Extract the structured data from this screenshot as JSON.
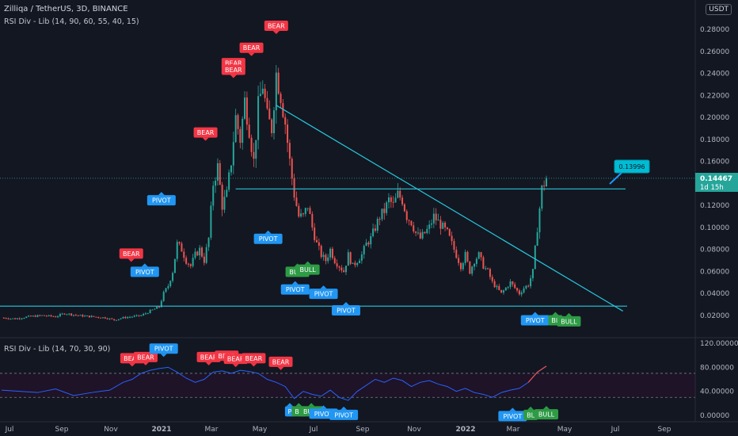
{
  "header": {
    "title": "Zilliqa / TetherUS, 3D, BINANCE",
    "indicator_main": "RSI Div - Lib (14, 90, 60, 55, 40, 15)",
    "indicator_sub": "RSI Div - Lib (14, 70, 30, 90)",
    "currency": "USDT"
  },
  "price_panel": {
    "last_price": "0.14467",
    "countdown": "1d 15h",
    "target_label": "0.13996"
  },
  "colors": {
    "background": "#131722",
    "up": "#26a69a",
    "down": "#ef5350",
    "bear_tag": "#f23645",
    "bull_tag": "#2e9b45",
    "pivot_tag": "#2196f3",
    "trendline": "#26c6da",
    "rsi_line": "#2962ff",
    "rsi_band": "#1e1327"
  },
  "chart_data": [
    {
      "type": "candlestick",
      "title": "Zilliqa / TetherUS, 3D, BINANCE",
      "y_ticks": [
        "0.28000",
        "0.26000",
        "0.24000",
        "0.22000",
        "0.20000",
        "0.18000",
        "0.16000",
        "0.14000",
        "0.12000",
        "0.10000",
        "0.08000",
        "0.06000",
        "0.04000",
        "0.02000"
      ],
      "ylim": [
        0.012,
        0.292
      ],
      "x_ticks": [
        "Jul",
        "Sep",
        "Nov",
        "2021",
        "Mar",
        "May",
        "Jul",
        "Sep",
        "Nov",
        "2022",
        "Mar",
        "May",
        "Jul",
        "Sep"
      ],
      "price_path": [
        [
          0,
          0.018
        ],
        [
          3,
          0.017
        ],
        [
          6,
          0.019
        ],
        [
          9,
          0.02
        ],
        [
          12,
          0.019
        ],
        [
          14,
          0.022
        ],
        [
          17,
          0.02
        ],
        [
          20,
          0.019
        ],
        [
          23,
          0.018
        ],
        [
          25,
          0.016
        ],
        [
          27,
          0.018
        ],
        [
          29,
          0.019
        ],
        [
          31,
          0.02
        ],
        [
          33,
          0.024
        ],
        [
          35,
          0.028
        ],
        [
          36,
          0.04
        ],
        [
          37,
          0.047
        ],
        [
          38,
          0.06
        ],
        [
          39,
          0.085
        ],
        [
          40,
          0.08
        ],
        [
          41,
          0.07
        ],
        [
          42,
          0.065
        ],
        [
          43,
          0.075
        ],
        [
          44,
          0.08
        ],
        [
          45,
          0.07
        ],
        [
          46,
          0.09
        ],
        [
          47,
          0.14
        ],
        [
          48,
          0.155
        ],
        [
          49,
          0.12
        ],
        [
          50,
          0.13
        ],
        [
          51,
          0.16
        ],
        [
          52,
          0.2
        ],
        [
          53,
          0.18
        ],
        [
          54,
          0.215
        ],
        [
          55,
          0.19
        ],
        [
          56,
          0.16
        ],
        [
          57,
          0.21
        ],
        [
          58,
          0.23
        ],
        [
          59,
          0.2
        ],
        [
          60,
          0.19
        ],
        [
          61,
          0.24
        ],
        [
          62,
          0.22
        ],
        [
          63,
          0.195
        ],
        [
          64,
          0.16
        ],
        [
          65,
          0.13
        ],
        [
          66,
          0.11
        ],
        [
          67,
          0.11
        ],
        [
          68,
          0.12
        ],
        [
          69,
          0.1
        ],
        [
          70,
          0.085
        ],
        [
          71,
          0.075
        ],
        [
          72,
          0.07
        ],
        [
          73,
          0.08
        ],
        [
          74,
          0.07
        ],
        [
          75,
          0.065
        ],
        [
          76,
          0.06
        ],
        [
          77,
          0.075
        ],
        [
          78,
          0.065
        ],
        [
          79,
          0.07
        ],
        [
          80,
          0.075
        ],
        [
          81,
          0.085
        ],
        [
          82,
          0.09
        ],
        [
          83,
          0.1
        ],
        [
          84,
          0.11
        ],
        [
          85,
          0.115
        ],
        [
          86,
          0.125
        ],
        [
          87,
          0.12
        ],
        [
          88,
          0.13
        ],
        [
          89,
          0.125
        ],
        [
          90,
          0.11
        ],
        [
          91,
          0.105
        ],
        [
          92,
          0.095
        ],
        [
          93,
          0.09
        ],
        [
          94,
          0.095
        ],
        [
          95,
          0.1
        ],
        [
          96,
          0.11
        ],
        [
          97,
          0.105
        ],
        [
          98,
          0.1
        ],
        [
          99,
          0.095
        ],
        [
          100,
          0.085
        ],
        [
          101,
          0.075
        ],
        [
          102,
          0.065
        ],
        [
          103,
          0.075
        ],
        [
          104,
          0.06
        ],
        [
          105,
          0.07
        ],
        [
          106,
          0.075
        ],
        [
          107,
          0.065
        ],
        [
          108,
          0.06
        ],
        [
          109,
          0.05
        ],
        [
          110,
          0.045
        ],
        [
          111,
          0.04
        ],
        [
          112,
          0.045
        ],
        [
          113,
          0.05
        ],
        [
          114,
          0.045
        ],
        [
          115,
          0.04
        ],
        [
          116,
          0.045
        ],
        [
          117,
          0.048
        ],
        [
          118,
          0.06
        ],
        [
          119,
          0.1
        ],
        [
          120,
          0.135
        ],
        [
          121,
          0.145
        ]
      ],
      "x_span": 121,
      "horizontal_levels": [
        0.135,
        0.0285
      ],
      "descending_trendline": [
        [
          61,
          0.211
        ],
        [
          138,
          0.024
        ]
      ],
      "signals": [
        {
          "label": "BEAR",
          "x": 61,
          "price": 0.275
        },
        {
          "label": "BEAR",
          "x": 55.5,
          "price": 0.255
        },
        {
          "label": "BEAR",
          "x": 51.5,
          "price": 0.241
        },
        {
          "label": "BEAR",
          "x": 51.5,
          "price": 0.235
        },
        {
          "label": "BEAR",
          "x": 45.3,
          "price": 0.178
        },
        {
          "label": "PIVOT",
          "x": 35.5,
          "price": 0.133
        },
        {
          "label": "BEAR",
          "x": 28.8,
          "price": 0.068
        },
        {
          "label": "PIVOT",
          "x": 31.8,
          "price": 0.068
        },
        {
          "label": "PIVOT",
          "x": 59.2,
          "price": 0.098
        },
        {
          "label": "BULL",
          "x": 65.7,
          "price": 0.068
        },
        {
          "label": "BULL",
          "x": 68,
          "price": 0.07
        },
        {
          "label": "PIVOT",
          "x": 65.2,
          "price": 0.052
        },
        {
          "label": "PIVOT",
          "x": 71.5,
          "price": 0.048
        },
        {
          "label": "PIVOT",
          "x": 76.5,
          "price": 0.033
        },
        {
          "label": "PIVOT",
          "x": 118.5,
          "price": 0.024
        },
        {
          "label": "BL",
          "x": 123,
          "price": 0.024
        },
        {
          "label": "BULL",
          "x": 126,
          "price": 0.023
        }
      ]
    },
    {
      "type": "line",
      "title": "RSI Div - Lib (14, 70, 30, 90)",
      "y_ticks": [
        "120.00000",
        "80.00000",
        "40.00000",
        "0.00000"
      ],
      "ylim": [
        0,
        120
      ],
      "levels": [
        70,
        30
      ],
      "rsi_path": [
        [
          0,
          42
        ],
        [
          4,
          40
        ],
        [
          8,
          38
        ],
        [
          12,
          44
        ],
        [
          16,
          33
        ],
        [
          20,
          38
        ],
        [
          24,
          42
        ],
        [
          27,
          55
        ],
        [
          29,
          60
        ],
        [
          31,
          70
        ],
        [
          33,
          75
        ],
        [
          35,
          78
        ],
        [
          37,
          80
        ],
        [
          39,
          72
        ],
        [
          41,
          62
        ],
        [
          43,
          55
        ],
        [
          45,
          60
        ],
        [
          47,
          72
        ],
        [
          49,
          74
        ],
        [
          51,
          70
        ],
        [
          53,
          75
        ],
        [
          55,
          73
        ],
        [
          57,
          70
        ],
        [
          59,
          60
        ],
        [
          61,
          55
        ],
        [
          63,
          48
        ],
        [
          65,
          28
        ],
        [
          67,
          40
        ],
        [
          69,
          35
        ],
        [
          71,
          32
        ],
        [
          73,
          42
        ],
        [
          75,
          30
        ],
        [
          77,
          25
        ],
        [
          79,
          40
        ],
        [
          81,
          50
        ],
        [
          83,
          60
        ],
        [
          85,
          55
        ],
        [
          87,
          62
        ],
        [
          89,
          58
        ],
        [
          91,
          48
        ],
        [
          93,
          55
        ],
        [
          95,
          58
        ],
        [
          97,
          52
        ],
        [
          99,
          48
        ],
        [
          101,
          40
        ],
        [
          103,
          45
        ],
        [
          105,
          38
        ],
        [
          107,
          35
        ],
        [
          109,
          30
        ],
        [
          111,
          38
        ],
        [
          113,
          42
        ],
        [
          115,
          45
        ],
        [
          117,
          55
        ],
        [
          119,
          72
        ],
        [
          121,
          82
        ]
      ],
      "signals": [
        {
          "label": "BEAR",
          "x": 29,
          "rsi": 80
        },
        {
          "label": "BEAR",
          "x": 32,
          "rsi": 82
        },
        {
          "label": "PIVOT",
          "x": 36,
          "rsi": 96
        },
        {
          "label": "BEAR",
          "x": 46,
          "rsi": 82
        },
        {
          "label": "BEAR",
          "x": 50,
          "rsi": 84
        },
        {
          "label": "BEAR",
          "x": 52,
          "rsi": 79
        },
        {
          "label": "BEAR",
          "x": 56,
          "rsi": 80
        },
        {
          "label": "BEAR",
          "x": 62,
          "rsi": 74
        },
        {
          "label": "P",
          "x": 64,
          "rsi": 22
        },
        {
          "label": "BL",
          "x": 66,
          "rsi": 22
        },
        {
          "label": "BULL",
          "x": 68.8,
          "rsi": 22
        },
        {
          "label": "PIVOT",
          "x": 71.5,
          "rsi": 18
        },
        {
          "label": "PIVOT",
          "x": 76,
          "rsi": 16
        },
        {
          "label": "PIVOT",
          "x": 113.5,
          "rsi": 14
        },
        {
          "label": "BL",
          "x": 117.5,
          "rsi": 16
        },
        {
          "label": "BULL",
          "x": 121,
          "rsi": 17
        }
      ]
    }
  ]
}
